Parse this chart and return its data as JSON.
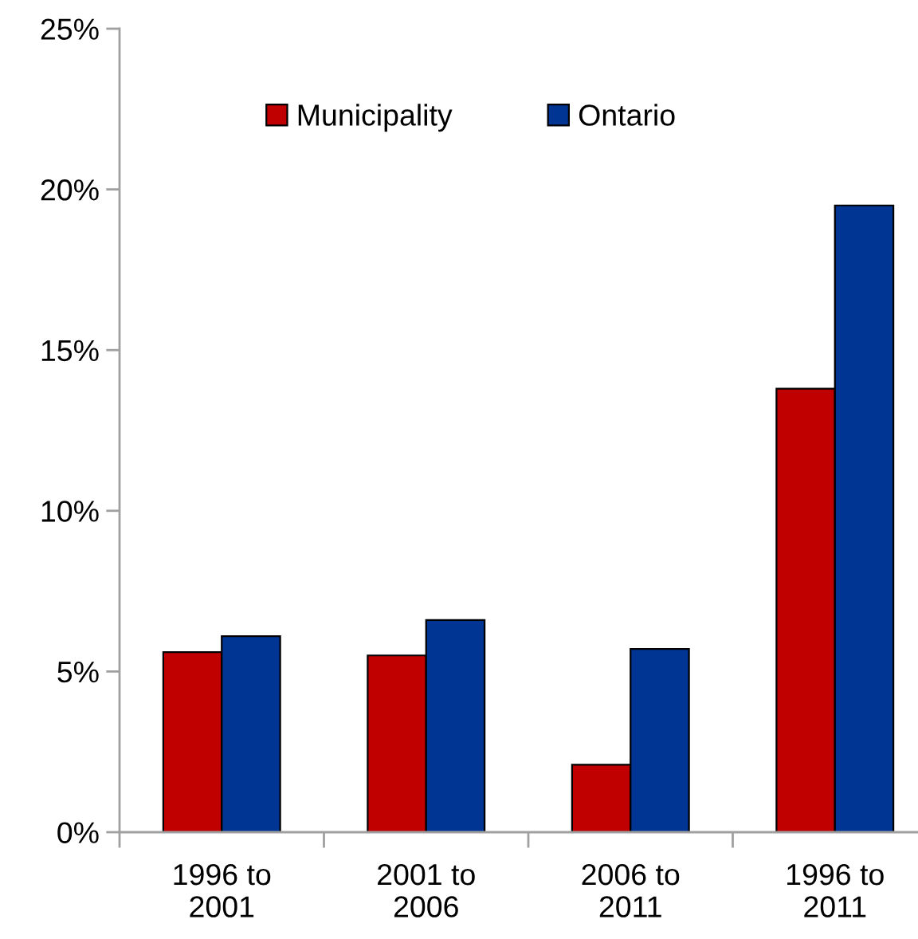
{
  "chart_data": {
    "type": "bar",
    "categories": [
      "1996 to\n2001",
      "2001 to\n2006",
      "2006 to\n2011",
      "1996 to\n2011"
    ],
    "series": [
      {
        "name": "Municipality",
        "color": "#c00000",
        "values": [
          5.6,
          5.5,
          2.1,
          13.8
        ]
      },
      {
        "name": "Ontario",
        "color": "#003594",
        "values": [
          6.1,
          6.6,
          5.7,
          19.5
        ]
      }
    ],
    "ylim": [
      0,
      25
    ],
    "yticks": [
      {
        "value": 0,
        "label": "0%"
      },
      {
        "value": 5,
        "label": "5%"
      },
      {
        "value": 10,
        "label": "10%"
      },
      {
        "value": 15,
        "label": "15%"
      },
      {
        "value": 20,
        "label": "20%"
      },
      {
        "value": 25,
        "label": "25%"
      }
    ],
    "grid": false,
    "legend": "top"
  }
}
